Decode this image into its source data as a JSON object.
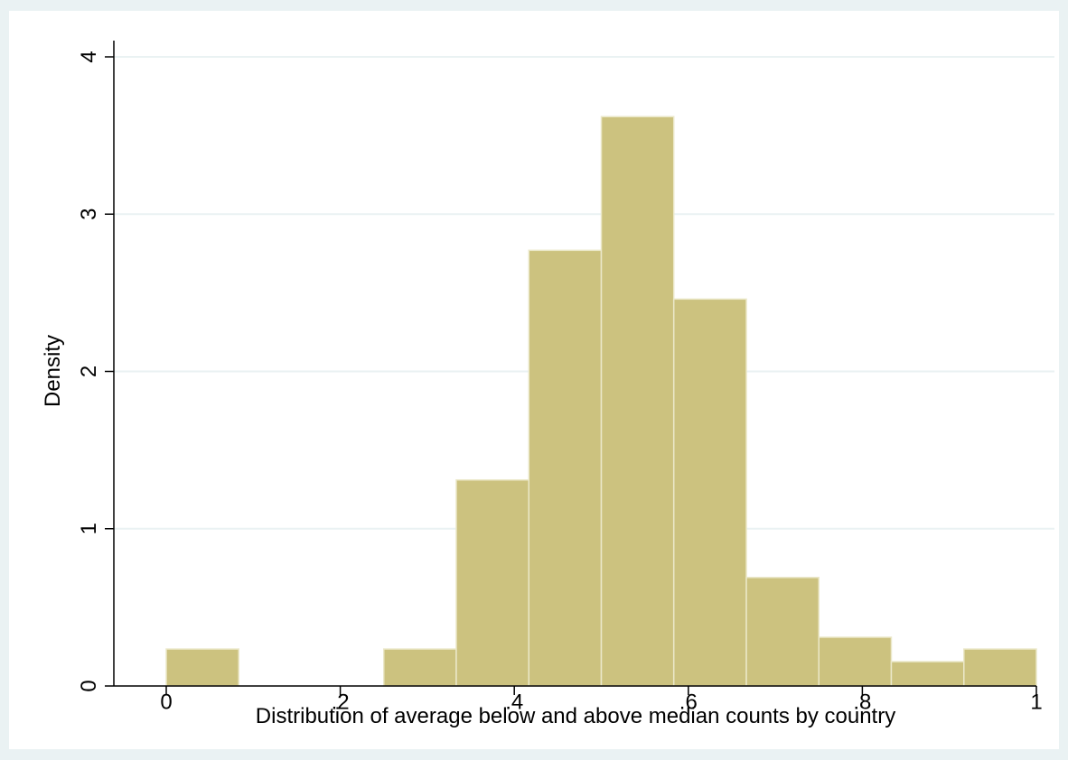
{
  "chart_data": {
    "type": "histogram",
    "x_label": "Distribution of average below and above median counts by country",
    "y_label": "Density",
    "bins": [
      0,
      0.0833,
      0.1667,
      0.25,
      0.3333,
      0.4167,
      0.5,
      0.5833,
      0.6667,
      0.75,
      0.8333,
      0.9167,
      1
    ],
    "values": [
      0.235,
      0,
      0,
      0.235,
      1.31,
      2.77,
      3.62,
      2.46,
      0.69,
      0.31,
      0.155,
      0.235
    ],
    "color": "#ccc27f",
    "xlim": [
      0,
      1
    ],
    "xticks": [
      0,
      {
        "value": 0.2,
        "label": ".2"
      },
      {
        "value": 0.4,
        "label": ".4"
      },
      {
        "value": 0.6,
        "label": ".6"
      },
      {
        "value": 0.8,
        "label": ".8"
      },
      1
    ],
    "ylim": [
      0,
      4
    ],
    "yticks": [
      0,
      1,
      2,
      3,
      4
    ],
    "grid": true
  }
}
